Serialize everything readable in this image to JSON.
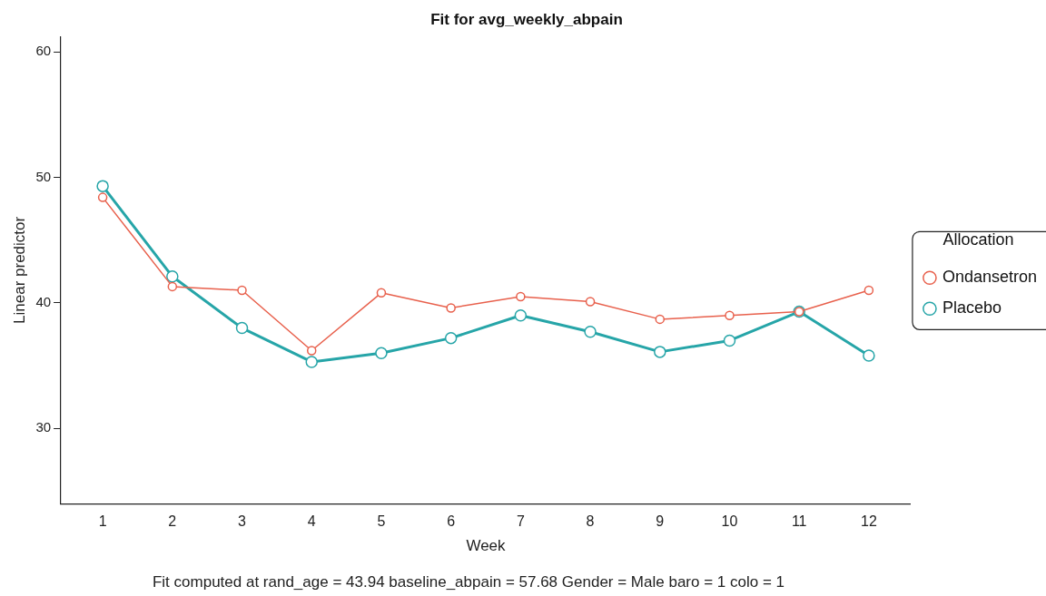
{
  "chart_data": {
    "type": "line",
    "title": "Fit for avg_weekly_abpain",
    "xlabel": "Week",
    "ylabel": "Linear predictor",
    "legend_title": "Allocation",
    "x": [
      1,
      2,
      3,
      4,
      5,
      6,
      7,
      8,
      9,
      10,
      11,
      12
    ],
    "xlim": [
      0.4,
      12.6
    ],
    "xticks": [
      1,
      2,
      3,
      4,
      5,
      6,
      7,
      8,
      9,
      10,
      11,
      12
    ],
    "series": [
      {
        "name": "Ondansetron",
        "color": "#e8604c",
        "values": [
          48.4,
          41.3,
          41.0,
          36.2,
          40.8,
          39.6,
          40.5,
          40.1,
          38.7,
          39.0,
          39.3,
          41.0
        ]
      },
      {
        "name": "Placebo",
        "color": "#26a5a8",
        "values": [
          49.3,
          42.1,
          38.0,
          35.3,
          36.0,
          37.2,
          39.0,
          37.7,
          36.1,
          37.0,
          39.3,
          35.8
        ]
      }
    ],
    "ylim": [
      24,
      61.2
    ],
    "yticks": [
      30,
      40,
      50,
      60
    ],
    "grid": false,
    "legend": "right",
    "marker": "circle",
    "line_style": "solid",
    "annotations": [
      "Fit computed at rand_age = 43.94 baseline_abpain = 57.68 Gender = Male baro = 1 colo = 1"
    ]
  }
}
